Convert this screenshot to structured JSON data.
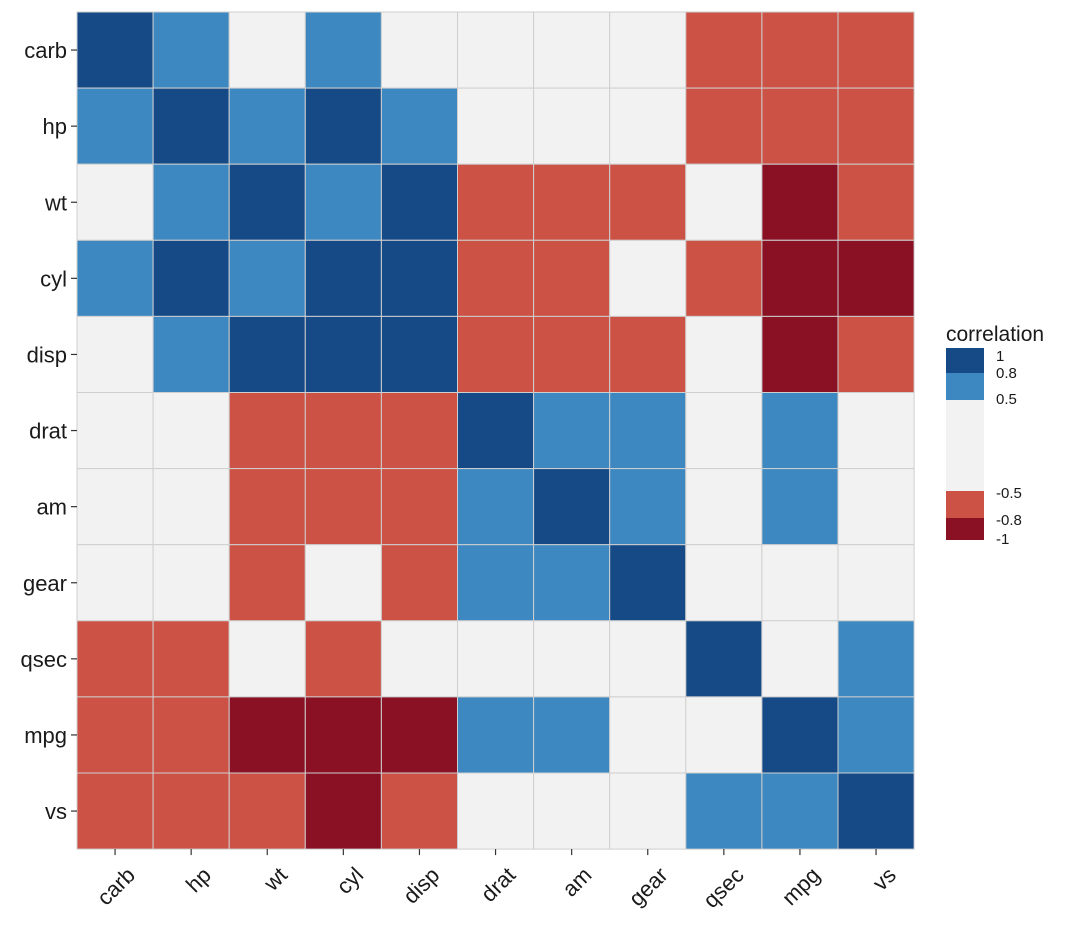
{
  "chart_data": {
    "type": "heatmap",
    "title": "",
    "xlabel": "",
    "ylabel": "",
    "x_categories": [
      "carb",
      "hp",
      "wt",
      "cyl",
      "disp",
      "drat",
      "am",
      "gear",
      "qsec",
      "mpg",
      "vs"
    ],
    "y_categories": [
      "carb",
      "hp",
      "wt",
      "cyl",
      "disp",
      "drat",
      "am",
      "gear",
      "qsec",
      "mpg",
      "vs"
    ],
    "values": [
      [
        1,
        0.8,
        0,
        0.8,
        0,
        0,
        0,
        0,
        -0.5,
        -0.5,
        -0.5
      ],
      [
        0.8,
        1,
        0.8,
        1,
        0.8,
        0,
        0,
        0,
        -0.5,
        -0.5,
        -0.5
      ],
      [
        0,
        0.8,
        1,
        0.8,
        1,
        -0.5,
        -0.5,
        -0.5,
        0,
        -0.8,
        -0.5
      ],
      [
        0.8,
        1,
        0.8,
        1,
        1,
        -0.5,
        -0.5,
        0,
        -0.5,
        -0.8,
        -0.8
      ],
      [
        0,
        0.8,
        1,
        1,
        1,
        -0.5,
        -0.5,
        -0.5,
        0,
        -0.8,
        -0.5
      ],
      [
        0,
        0,
        -0.5,
        -0.5,
        -0.5,
        1,
        0.8,
        0.8,
        0,
        0.8,
        0
      ],
      [
        0,
        0,
        -0.5,
        -0.5,
        -0.5,
        0.8,
        1,
        0.8,
        0,
        0.8,
        0
      ],
      [
        0,
        0,
        -0.5,
        0,
        -0.5,
        0.8,
        0.8,
        1,
        0,
        0,
        0
      ],
      [
        -0.5,
        -0.5,
        0,
        -0.5,
        0,
        0,
        0,
        0,
        1,
        0,
        0.8
      ],
      [
        -0.5,
        -0.5,
        -0.8,
        -0.8,
        -0.8,
        0.8,
        0.8,
        0,
        0,
        1,
        0.8
      ],
      [
        -0.5,
        -0.5,
        -0.5,
        -0.8,
        -0.5,
        0,
        0,
        0,
        0.8,
        0.8,
        1
      ]
    ],
    "legend": {
      "title": "correlation",
      "position": "right",
      "labels": [
        "1",
        "0.8",
        "0.5",
        "-0.5",
        "-0.8",
        "-1"
      ],
      "bins": [
        {
          "value": 1,
          "color": "#164a87"
        },
        {
          "value": 0.8,
          "color": "#3d88c0"
        },
        {
          "value": 0,
          "color": "#f2f2f2"
        },
        {
          "value": -0.5,
          "color": "#cc5245"
        },
        {
          "value": -0.8,
          "color": "#8a1124"
        }
      ]
    },
    "colors": {
      "strong_positive": "#164a87",
      "positive": "#3d88c0",
      "neutral": "#f2f2f2",
      "negative": "#cc5245",
      "strong_negative": "#8a1124",
      "grid": "#cfcfcf"
    }
  }
}
